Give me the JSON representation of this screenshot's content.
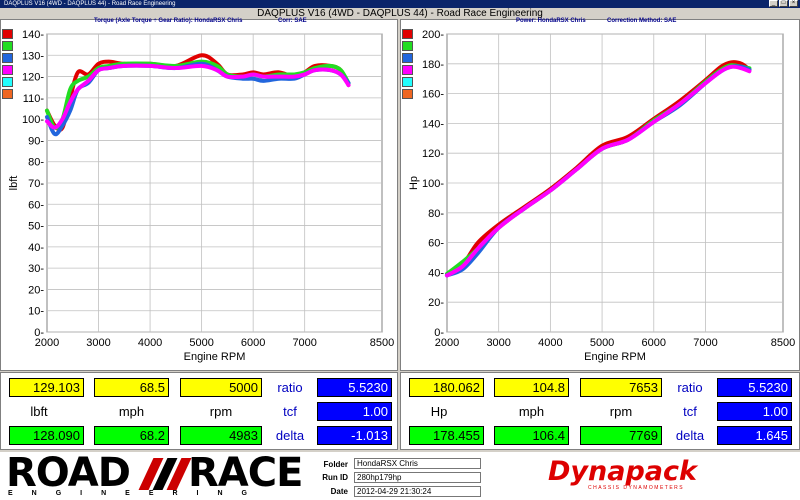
{
  "window": {
    "title": "DAQPLUS V16 (4WD - DAQPLUS 44) - Road Race Engineering"
  },
  "header": {
    "title": "DAQPLUS V16 (4WD - DAQPLUS 44) - Road Race Engineering"
  },
  "colors": {
    "red": "#e00000",
    "green": "#22dd22",
    "blue": "#2266dd",
    "magenta": "#ff00ff",
    "cyan": "#22ffff",
    "orange": "#ee6622"
  },
  "legend": [
    "#e00000",
    "#22dd22",
    "#2266dd",
    "#ff00ff",
    "#22ffff",
    "#ee6622"
  ],
  "chart_data": [
    {
      "type": "line",
      "subtitle_left": "Torque (Axle Torque ÷ Gear Ratio): HondaRSX Chris",
      "subtitle_right": "Corr: SAE",
      "xlabel": "Engine RPM",
      "ylabel": "lbft",
      "xlim": [
        2000,
        8500
      ],
      "ylim": [
        0,
        140
      ],
      "xticks": [
        2000,
        3000,
        4000,
        5000,
        6000,
        7000,
        8500
      ],
      "yticks": [
        0,
        10,
        20,
        30,
        40,
        50,
        60,
        70,
        80,
        90,
        100,
        110,
        120,
        130,
        140
      ],
      "series": [
        {
          "color": "#e00000",
          "x": [
            2000,
            2150,
            2300,
            2450,
            2600,
            2800,
            3000,
            3200,
            3500,
            4000,
            4500,
            5000,
            5300,
            5500,
            5800,
            6000,
            6200,
            6500,
            6800,
            7000,
            7200,
            7500,
            7700,
            7850
          ],
          "y": [
            104,
            97,
            96,
            110,
            122,
            121,
            126,
            127,
            126,
            126,
            125,
            130,
            126,
            121,
            121,
            122,
            121,
            122,
            120,
            122,
            125,
            125,
            123,
            116
          ]
        },
        {
          "color": "#22dd22",
          "x": [
            2000,
            2150,
            2300,
            2450,
            2600,
            2800,
            3000,
            3200,
            3500,
            4000,
            4500,
            5000,
            5300,
            5500,
            5800,
            6000,
            6200,
            6500,
            6800,
            7000,
            7200,
            7500,
            7700,
            7850
          ],
          "y": [
            104,
            96,
            100,
            114,
            118,
            120,
            124,
            125,
            126,
            126,
            125,
            127,
            125,
            121,
            120,
            121,
            120,
            121,
            121,
            122,
            124,
            125,
            123,
            117
          ]
        },
        {
          "color": "#2266dd",
          "x": [
            2000,
            2150,
            2300,
            2450,
            2600,
            2800,
            3000,
            3200,
            3500,
            4000,
            4500,
            5000,
            5300,
            5500,
            5800,
            6000,
            6200,
            6500,
            6800,
            7000,
            7200,
            7500,
            7700,
            7850
          ],
          "y": [
            101,
            93,
            97,
            104,
            114,
            117,
            123,
            124,
            125,
            125,
            124,
            126,
            123,
            120,
            119,
            119,
            118,
            119,
            119,
            121,
            123,
            123,
            121,
            117
          ]
        },
        {
          "color": "#ff00ff",
          "x": [
            2000,
            2150,
            2300,
            2450,
            2600,
            2800,
            3000,
            3200,
            3500,
            4000,
            4500,
            5000,
            5300,
            5500,
            5800,
            6000,
            6200,
            6500,
            6800,
            7000,
            7200,
            7500,
            7700,
            7850
          ],
          "y": [
            99,
            96,
            100,
            108,
            114,
            118,
            123,
            124,
            125,
            125,
            124,
            125,
            123,
            120,
            120,
            121,
            120,
            120,
            120,
            121,
            123,
            123,
            121,
            116
          ]
        }
      ]
    },
    {
      "type": "line",
      "subtitle_left": "Power: HondaRSX Chris",
      "subtitle_right": "Correction Method: SAE",
      "xlabel": "Engine RPM",
      "ylabel": "Hp",
      "xlim": [
        2000,
        8500
      ],
      "ylim": [
        0,
        200
      ],
      "xticks": [
        2000,
        3000,
        4000,
        5000,
        6000,
        7000,
        8500
      ],
      "yticks": [
        0,
        20,
        40,
        60,
        80,
        100,
        120,
        140,
        160,
        180,
        200
      ],
      "series": [
        {
          "color": "#e00000",
          "x": [
            2000,
            2300,
            2600,
            3000,
            3500,
            4000,
            4500,
            5000,
            5500,
            6000,
            6500,
            7000,
            7300,
            7500,
            7700,
            7850
          ],
          "y": [
            38,
            45,
            60,
            72,
            84,
            96,
            110,
            125,
            131,
            143,
            155,
            169,
            178,
            181,
            180,
            176
          ]
        },
        {
          "color": "#22dd22",
          "x": [
            2000,
            2300,
            2600,
            3000,
            3500,
            4000,
            4500,
            5000,
            5500,
            6000,
            6500,
            7000,
            7300,
            7500,
            7700,
            7850
          ],
          "y": [
            39,
            47,
            56,
            70,
            83,
            95,
            109,
            123,
            129,
            142,
            153,
            168,
            176,
            179,
            178,
            177
          ]
        },
        {
          "color": "#2266dd",
          "x": [
            2000,
            2300,
            2600,
            3000,
            3500,
            4000,
            4500,
            5000,
            5500,
            6000,
            6500,
            7000,
            7300,
            7500,
            7700,
            7850
          ],
          "y": [
            38,
            42,
            53,
            70,
            83,
            95,
            109,
            123,
            129,
            141,
            152,
            167,
            175,
            178,
            178,
            176
          ]
        },
        {
          "color": "#ff00ff",
          "x": [
            2000,
            2300,
            2600,
            3000,
            3500,
            4000,
            4500,
            5000,
            5500,
            6000,
            6500,
            7000,
            7300,
            7500,
            7700,
            7850
          ],
          "y": [
            38,
            44,
            56,
            70,
            83,
            95,
            109,
            123,
            129,
            141,
            153,
            167,
            175,
            178,
            177,
            175
          ]
        }
      ]
    }
  ],
  "readouts": {
    "left": {
      "top": [
        "129.103",
        "68.5",
        "5000"
      ],
      "labels": [
        "lbft",
        "mph",
        "rpm"
      ],
      "bottom": [
        "128.090",
        "68.2",
        "4983"
      ],
      "ratio_label": "ratio",
      "ratio": "5.5230",
      "tcf_label": "tcf",
      "tcf": "1.00",
      "delta_label": "delta",
      "delta": "-1.013"
    },
    "right": {
      "top": [
        "180.062",
        "104.8",
        "7653"
      ],
      "labels": [
        "Hp",
        "mph",
        "rpm"
      ],
      "bottom": [
        "178.455",
        "106.4",
        "7769"
      ],
      "ratio_label": "ratio",
      "ratio": "5.5230",
      "tcf_label": "tcf",
      "tcf": "1.00",
      "delta_label": "delta",
      "delta": "1.645"
    }
  },
  "footer": {
    "logo_text_road": "ROAD",
    "logo_text_race": "RACE",
    "logo_sub": "ENGINEERING",
    "folder_label": "Folder",
    "folder": "HondaRSX Chris",
    "runid_label": "Run ID",
    "runid": "280hp179hp",
    "date_label": "Date",
    "date": "2012-04-29 21:30:24",
    "brand": "Dynapack",
    "brand_sub": "CHASSIS DYNAMOMETERS"
  }
}
